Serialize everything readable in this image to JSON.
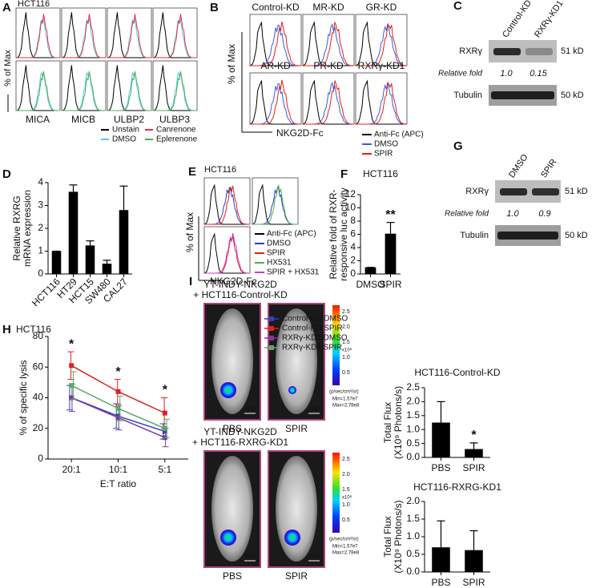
{
  "chart_data": [
    {
      "type": "bar",
      "panel": "D",
      "ylabel": [
        "Relative RXRG",
        "mRNA expression"
      ],
      "categories": [
        "HCT116",
        "HT29",
        "HCT15",
        "SW480",
        "CAL27"
      ],
      "values": [
        1,
        3.6,
        1.25,
        0.45,
        2.8
      ],
      "errors": [
        0,
        0.3,
        0.2,
        0.15,
        1.05
      ],
      "color": "#000000",
      "ylim": [
        0,
        4
      ],
      "yticks": [
        0,
        1,
        2,
        3,
        4
      ]
    },
    {
      "type": "bar",
      "panel": "F",
      "title": "HCT116",
      "ylabel": [
        "Relative fold of RXR-",
        "responsive luc activity"
      ],
      "categories": [
        "DMSO",
        "SPIR"
      ],
      "values": [
        1,
        6.1
      ],
      "errors": [
        0,
        1.7
      ],
      "color": "#000000",
      "ylim": [
        0,
        12
      ],
      "yticks": [
        0,
        2,
        4,
        6,
        8,
        10,
        12
      ],
      "annotations": [
        {
          "text": "**",
          "x": "SPIR"
        }
      ]
    },
    {
      "type": "line",
      "panel": "H",
      "title": "HCT116",
      "ylabel": [
        "% of specific lysis"
      ],
      "xlabel": "E:T ratio",
      "categories": [
        "20:1",
        "10:1",
        "5:1"
      ],
      "series": [
        {
          "name": "Control-KD DMSO",
          "color": "#2b3fc4",
          "values": [
            40,
            28,
            18
          ],
          "errors": [
            8,
            8,
            5
          ]
        },
        {
          "name": "Control-KD SPIR",
          "color": "#e02020",
          "values": [
            61,
            44,
            30
          ],
          "errors": [
            9,
            8,
            10
          ]
        },
        {
          "name": "RXRγ-KD1 DMSO",
          "color": "#7a3a9a",
          "values": [
            40,
            27,
            14
          ],
          "errors": [
            9,
            8,
            6
          ]
        },
        {
          "name": "RXRγ-KD1 SPIR",
          "color": "#5aa86a",
          "values": [
            48,
            33,
            20
          ],
          "errors": [
            9,
            8,
            6
          ]
        }
      ],
      "ylim": [
        0,
        80
      ],
      "yticks": [
        0,
        20,
        40,
        60,
        80
      ],
      "annotations": [
        {
          "text": "*",
          "x": "20:1"
        },
        {
          "text": "*",
          "x": "10:1"
        },
        {
          "text": "*",
          "x": "5:1"
        }
      ]
    },
    {
      "type": "bar",
      "title": "HCT116-Control-KD",
      "ylabel": [
        "Total Flux",
        "(X10⁹ Photons/s)"
      ],
      "categories": [
        "PBS",
        "SPIR"
      ],
      "values": [
        1.25,
        0.3
      ],
      "errors": [
        0.75,
        0.22
      ],
      "color": "#000000",
      "ylim": [
        0,
        2.5
      ],
      "yticks": [
        {
          "value": 0,
          "label": "0.0"
        },
        {
          "value": 0.5,
          "label": "0.5"
        },
        {
          "value": 1,
          "label": "1.0"
        },
        {
          "value": 1.5,
          "label": "1.5"
        },
        {
          "value": 2,
          "label": "2.0"
        },
        {
          "value": 2.5,
          "label": "2.5"
        }
      ],
      "annotations": [
        {
          "text": "*",
          "x": "SPIR"
        }
      ]
    },
    {
      "type": "bar",
      "title": "HCT116-RXRG-KD1",
      "ylabel": [
        "Total Flux",
        "(X10⁹ Photons/s)"
      ],
      "categories": [
        "PBS",
        "SPIR"
      ],
      "values": [
        0.7,
        0.62
      ],
      "errors": [
        0.75,
        0.55
      ],
      "color": "#000000",
      "ylim": [
        0,
        2
      ],
      "yticks": [
        {
          "value": 0,
          "label": "0.0"
        },
        {
          "value": 0.5,
          "label": "0.5"
        },
        {
          "value": 1,
          "label": "1.0"
        },
        {
          "value": 1.5,
          "label": "1.5"
        },
        {
          "value": 2,
          "label": "2.0"
        }
      ]
    }
  ],
  "panel_a": {
    "letter": "A",
    "cell": "HCT116",
    "ylabel": "% of Max",
    "markers": [
      "MICA",
      "MICB",
      "ULBP2",
      "ULBP3"
    ],
    "legend": [
      {
        "name": "Unstain",
        "color": "#000000"
      },
      {
        "name": "Canrenone",
        "color": "#e8323c"
      },
      {
        "name": "DMSO",
        "color": "#5bc8e8"
      },
      {
        "name": "Eplerenone",
        "color": "#4caf50"
      }
    ]
  },
  "panel_b": {
    "letter": "B",
    "knockdowns": [
      "Control-KD",
      "MR-KD",
      "GR-KD",
      "AR-KD",
      "PR-KD",
      "RXRγ-KD1"
    ],
    "ylabel": "% of Max",
    "xlabel": "NKG2D-Fc",
    "legend": [
      {
        "name": "Anti-Fc (APC)",
        "color": "#000000"
      },
      {
        "name": "DMSO",
        "color": "#3a5bd9"
      },
      {
        "name": "SPIR",
        "color": "#e02020"
      }
    ]
  },
  "panel_c": {
    "letter": "C",
    "lanes": [
      "Control-KD",
      "RXRγ-KD1"
    ],
    "protein": "RXRγ",
    "protein_size": "51 kD",
    "fold_label": "Relative fold",
    "folds": [
      "1.0",
      "0.15"
    ],
    "loading": "Tubulin",
    "loading_size": "50 kD"
  },
  "panel_e": {
    "letter": "E",
    "cell": "HCT116",
    "ylabel": "% of Max",
    "xlabel": "NKG2D-Fc",
    "legend": [
      {
        "name": "Anti-Fc (APC)",
        "color": "#000000"
      },
      {
        "name": "DMSO",
        "color": "#2b3fc4"
      },
      {
        "name": "SPIR",
        "color": "#e02020"
      },
      {
        "name": "HX531",
        "color": "#4caf50"
      },
      {
        "name": "SPIR + HX531",
        "color": "#c040d0"
      }
    ]
  },
  "panel_g": {
    "letter": "G",
    "lanes": [
      "DMSO",
      "SPIR"
    ],
    "protein": "RXRγ",
    "protein_size": "51 kD",
    "fold_label": "Relative fold",
    "folds": [
      "1.0",
      "0.9"
    ],
    "loading": "Tubulin",
    "loading_size": "50 kD"
  },
  "panel_i": {
    "letter": "I",
    "groups": [
      {
        "title": [
          "YT-INDY-NKG2D",
          "+ HCT116-Control-KD"
        ],
        "conditions": [
          "PBS",
          "SPIR"
        ]
      },
      {
        "title": [
          "YT-INDY-NKG2D",
          "+ HCT116-RXRG-KD1"
        ],
        "conditions": [
          "PBS",
          "SPIR"
        ]
      }
    ],
    "scale": {
      "ticks": [
        "2.5",
        "2.0",
        "1.5",
        "1.0",
        "0.5"
      ],
      "exponent": "x10⁸",
      "unit": "(p/sec/cm²/sr)",
      "min": "Min=1.57e7",
      "max": "Max=2.78e8"
    },
    "scale_bar": "1cm"
  }
}
